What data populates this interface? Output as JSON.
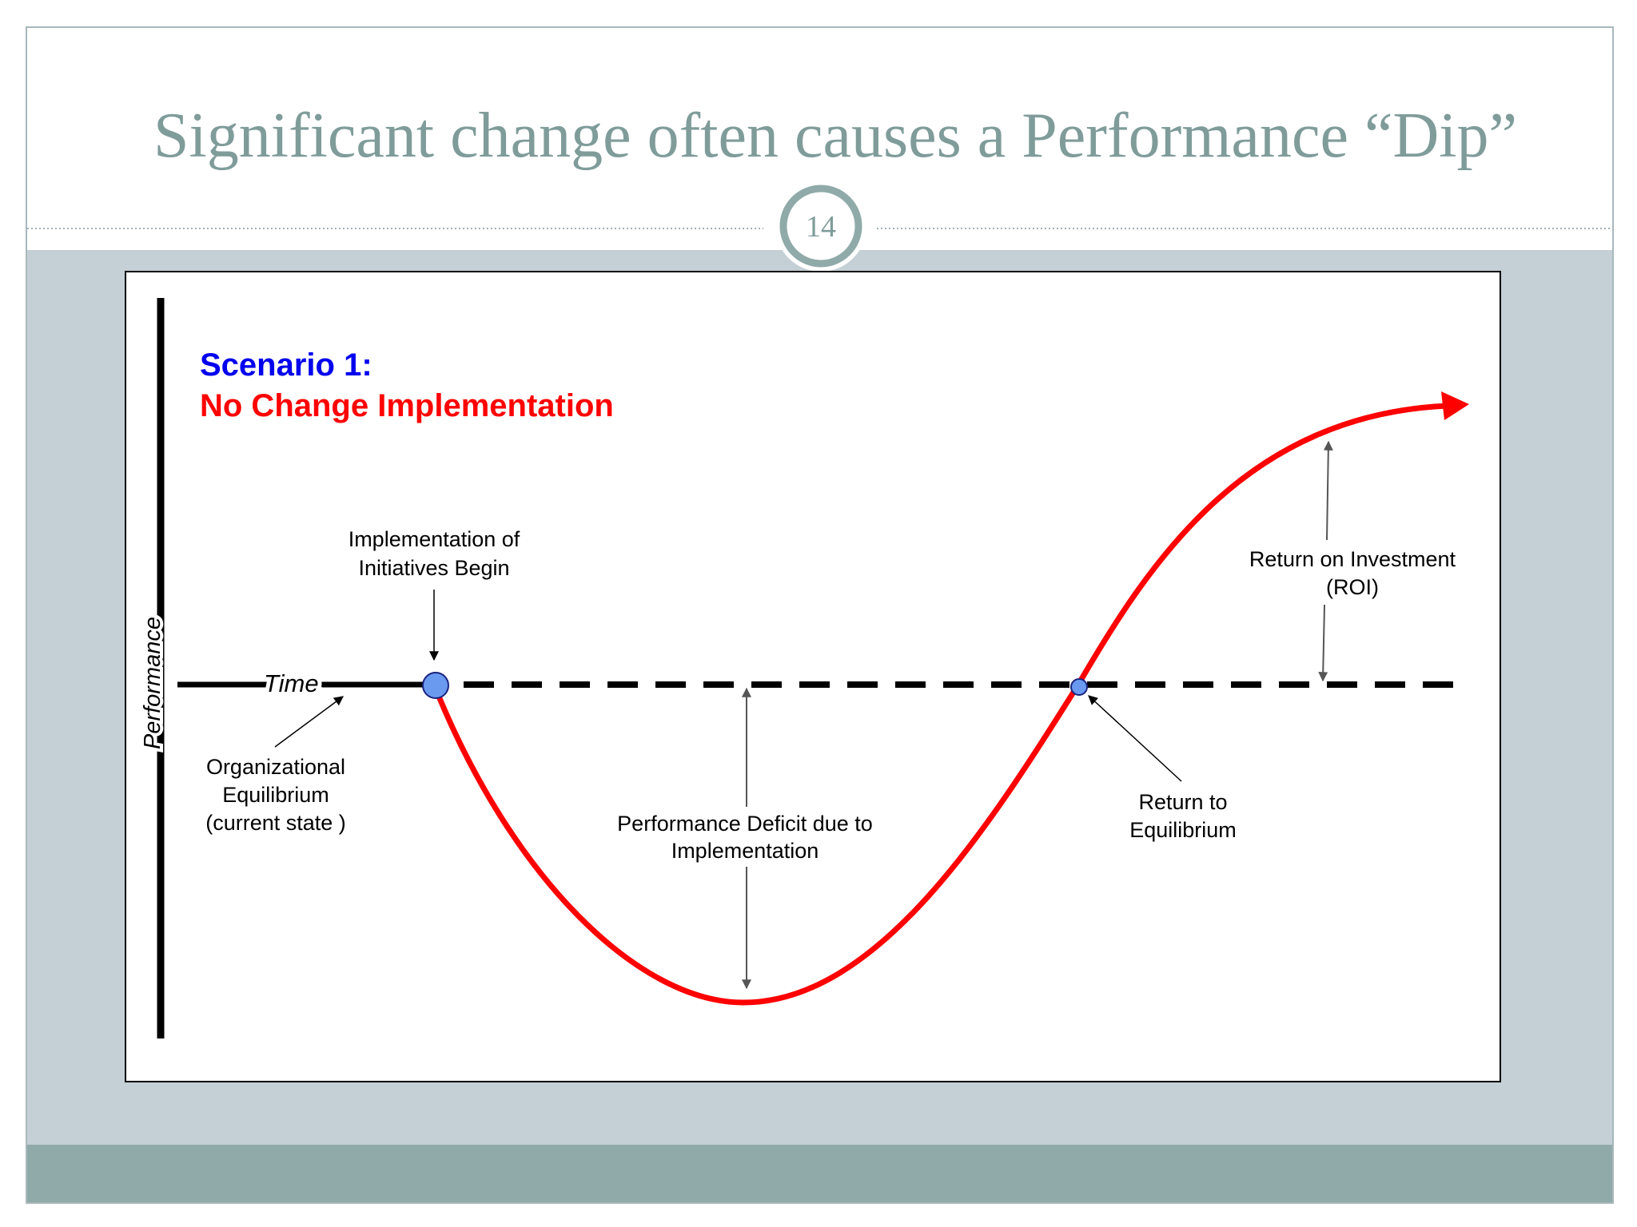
{
  "slide": {
    "title": "Significant change often causes a Performance “Dip”",
    "page_number": "14"
  },
  "diagram": {
    "scenario_label": "Scenario 1:",
    "scenario_name": "No Change Implementation",
    "y_axis_label": "Performance",
    "x_axis_label": "Time",
    "annotations": {
      "implementation_line1": "Implementation of",
      "implementation_line2": "Initiatives Begin",
      "equilibrium_line1": "Organizational",
      "equilibrium_line2": "Equilibrium",
      "equilibrium_line3": "(current state )",
      "deficit_line1": "Performance Deficit due to",
      "deficit_line2": "Implementation",
      "return_line1": "Return to",
      "return_line2": "Equilibrium",
      "roi_line1": "Return on Investment",
      "roi_line2": "(ROI)"
    }
  },
  "colors": {
    "title_text": "#7f9c9a",
    "band": "#c4d0d5",
    "footer": "#8faaa9",
    "curve": "#ff0000",
    "scenario_blue": "#0000ee",
    "scenario_red": "#ff0000",
    "marker": "#6a9af0"
  }
}
